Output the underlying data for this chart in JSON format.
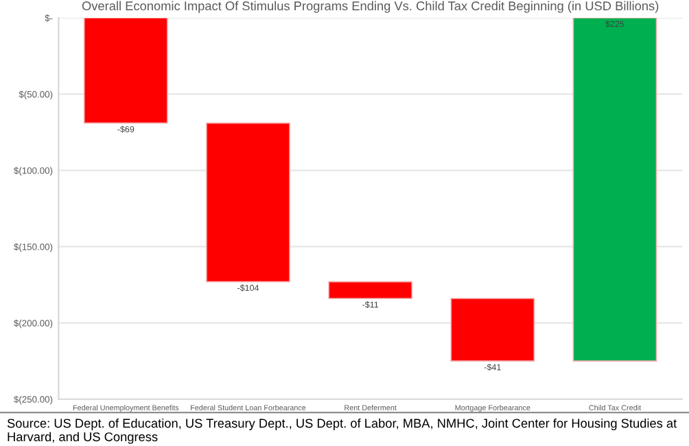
{
  "chart_data": {
    "type": "bar",
    "title": "Overall Economic Impact Of Stimulus Programs Ending Vs. Child Tax Credit Beginning (in USD Billions)",
    "categories": [
      "Federal Unemployment Benefits",
      "Federal Student Loan Forbearance",
      "Rent Deferment",
      "Mortgage Forbearance",
      "Child Tax Credit"
    ],
    "values": [
      -69,
      -104,
      -11,
      -41,
      225
    ],
    "base": [
      0,
      -69,
      -173,
      -184,
      -225
    ],
    "colors": [
      "#ff0000",
      "#ff0000",
      "#ff0000",
      "#ff0000",
      "#00b050"
    ],
    "value_labels": [
      "-$69",
      "-$104",
      "-$11",
      "-$41",
      "$225"
    ],
    "ylim": [
      -250,
      0
    ],
    "yticks": [
      {
        "value": -250,
        "label": "$(250.00)"
      },
      {
        "value": -200,
        "label": "$(200.00)"
      },
      {
        "value": -150,
        "label": "$(150.00)"
      },
      {
        "value": -100,
        "label": "$(100.00)"
      },
      {
        "value": -50,
        "label": "$(50.00)"
      },
      {
        "value": 0,
        "label": "$-"
      }
    ],
    "grid": "y",
    "annotations": [
      "Source: US Dept. of Education, US Treasury Dept., US Dept. of Labor, MBA, NMHC, Joint Center for Housing Studies at Harvard, and US Congress"
    ]
  }
}
